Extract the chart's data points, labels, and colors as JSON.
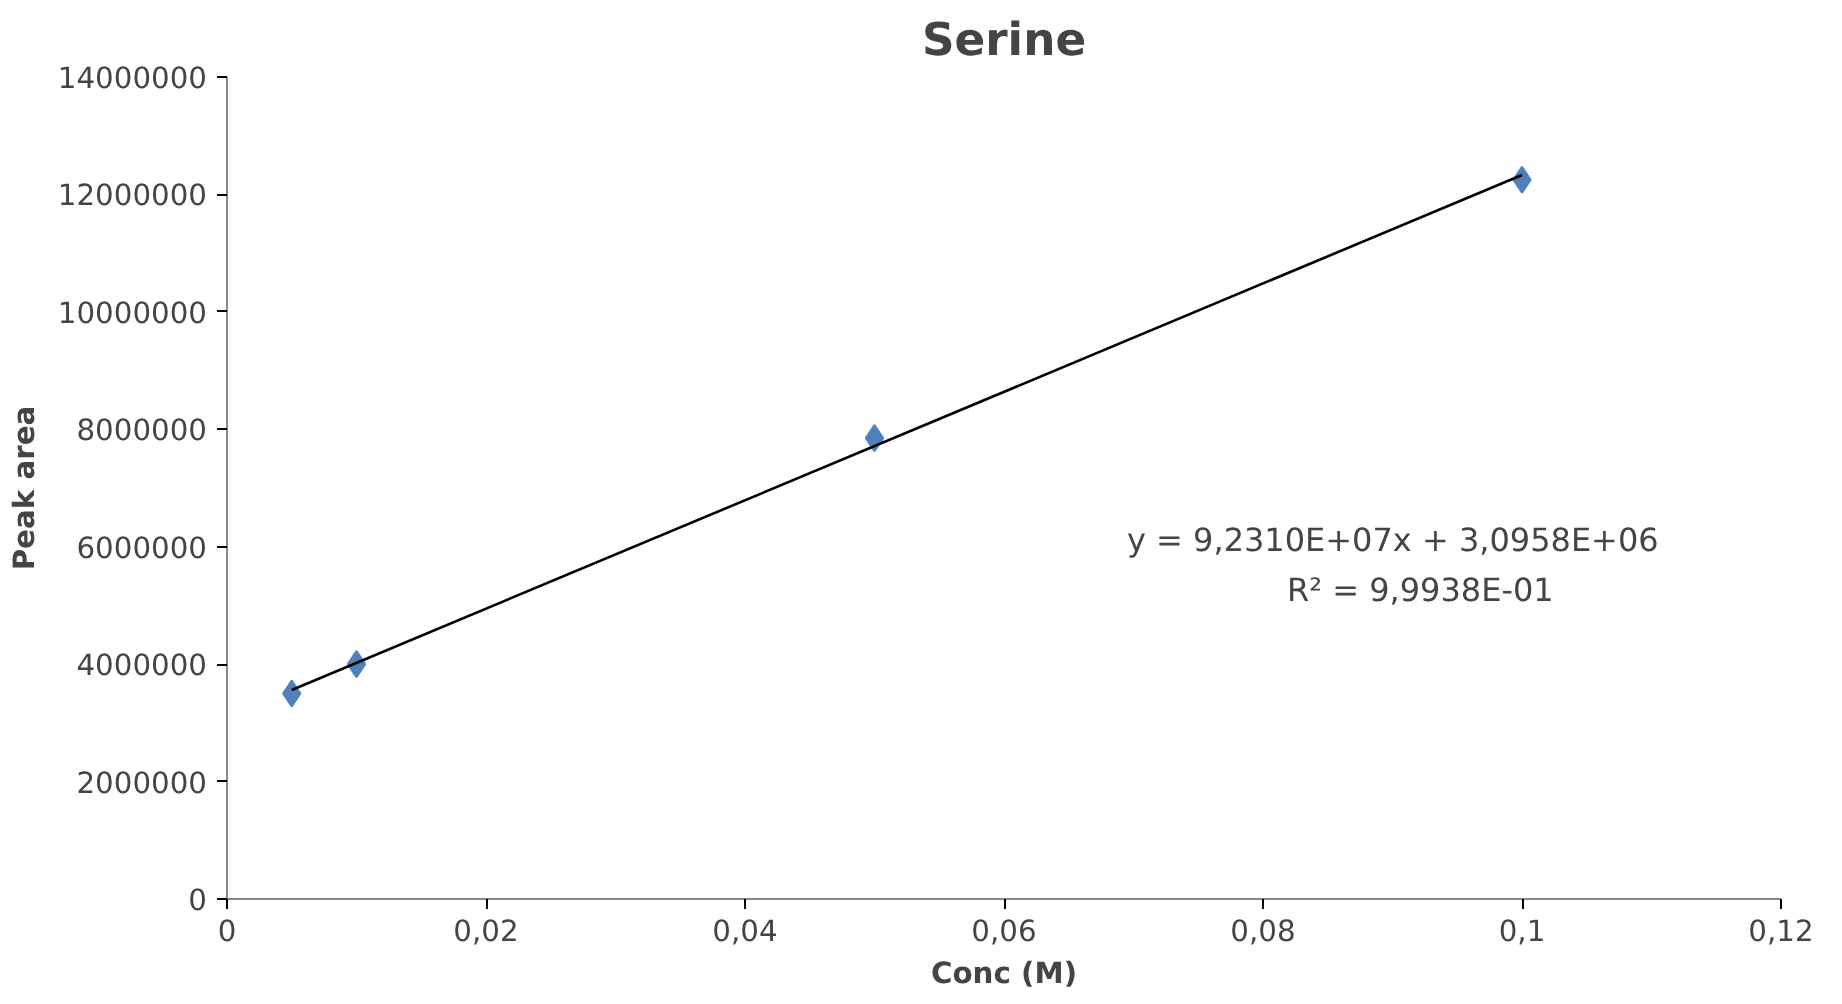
{
  "chart_data": {
    "type": "scatter",
    "title": "Serine",
    "xlabel": "Conc (M)",
    "ylabel": "Peak area",
    "x": [
      0.005,
      0.01,
      0.05,
      0.1
    ],
    "series": [
      {
        "type": "scatter",
        "color": "#4f81bd",
        "marker": "diamond",
        "values": [
          3500000,
          4000000,
          7850000,
          12250000
        ]
      },
      {
        "type": "line",
        "color": "#000000",
        "marker": "none",
        "line_style": "solid",
        "x": [
          0.005,
          0.1
        ],
        "values": [
          3560000,
          12330000
        ]
      }
    ],
    "xlim": [
      0,
      0.12
    ],
    "ylim": [
      0,
      14000000
    ],
    "xticks": [
      0,
      {
        "value": 0.02,
        "label": "0,02"
      },
      {
        "value": 0.04,
        "label": "0,04"
      },
      {
        "value": 0.06,
        "label": "0,06"
      },
      {
        "value": 0.08,
        "label": "0,08"
      },
      {
        "value": 0.1,
        "label": "0,1"
      },
      {
        "value": 0.12,
        "label": "0,12"
      }
    ],
    "yticks": [
      0,
      2000000,
      4000000,
      6000000,
      8000000,
      10000000,
      12000000,
      14000000
    ],
    "annotations": [
      "y = 9,2310E+07x + 3,0958E+06",
      "R² = 9,9938E-01"
    ],
    "grid": false
  }
}
